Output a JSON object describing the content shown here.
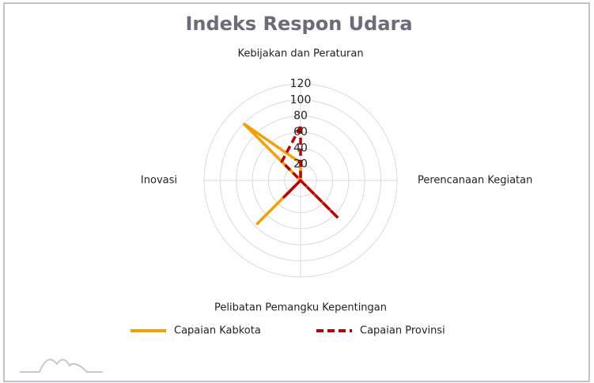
{
  "chart_data": {
    "type": "radar",
    "title": "Indeks Respon Udara",
    "categories": [
      "Kebijakan dan Peraturan",
      null,
      "Perencanaan Kegiatan",
      null,
      "Pelibatan Pemangku Kepentingan",
      null,
      "Inovasi",
      null
    ],
    "series": [
      {
        "name": "Capaian Kabkota",
        "color": "#f5a000",
        "values": [
          22,
          0,
          0,
          0,
          0,
          76,
          0,
          99
        ]
      },
      {
        "name": "Capaian Provinsi",
        "color": "#c00000",
        "values": [
          67,
          0,
          0,
          66,
          0,
          29,
          0,
          33
        ]
      }
    ],
    "rlim": [
      0,
      120
    ],
    "rticks": [
      20,
      40,
      60,
      80,
      100,
      120
    ],
    "grid": true,
    "legend": "bottom"
  }
}
